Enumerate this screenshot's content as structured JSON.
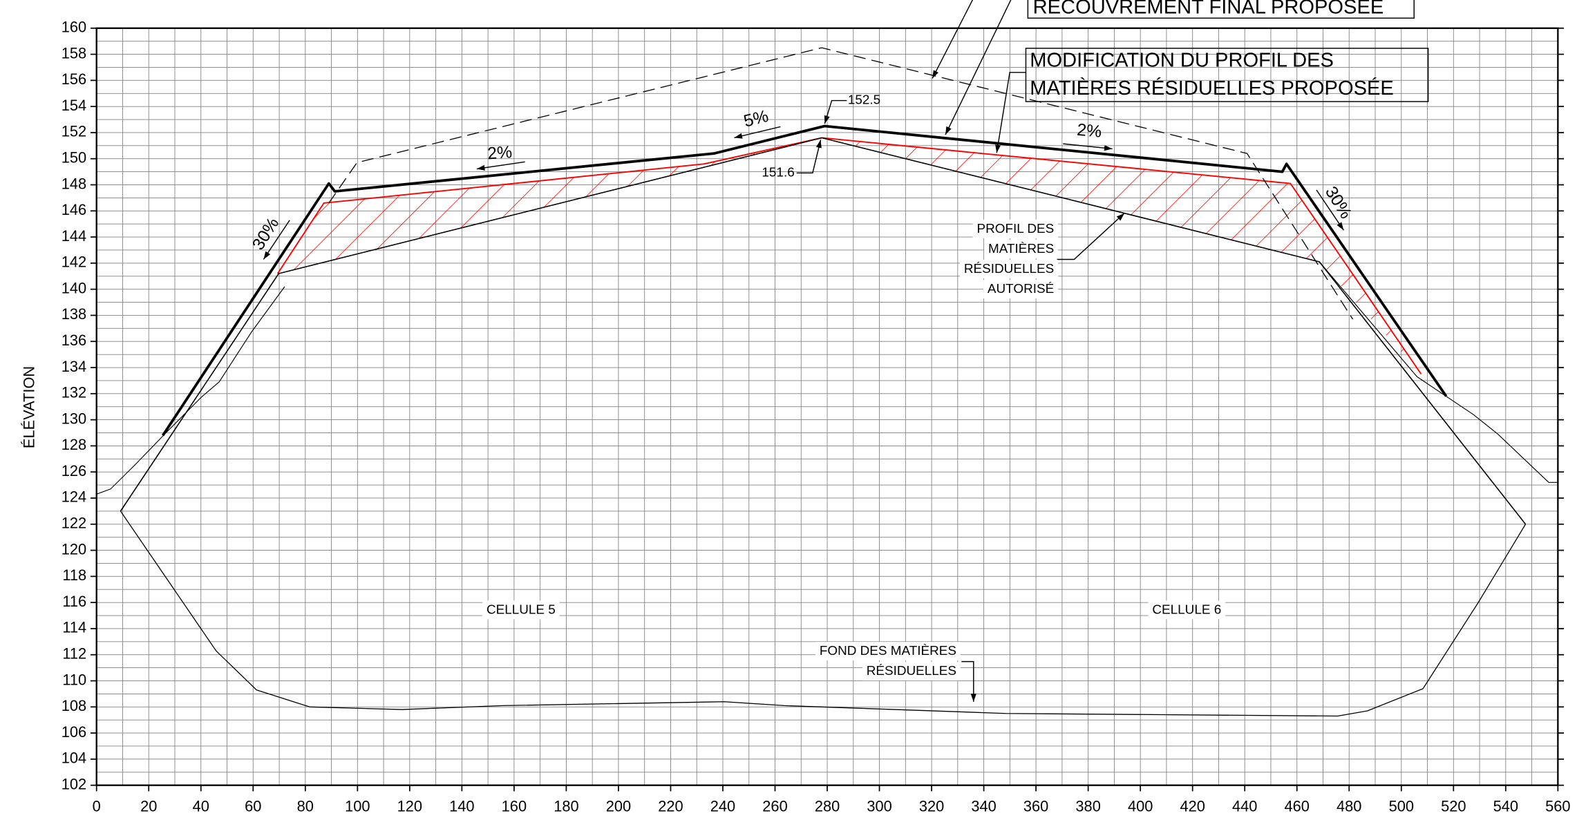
{
  "chart_data": {
    "type": "line",
    "ylabel": "ÉLÉVATION",
    "xlim": [
      0,
      560
    ],
    "ylim": [
      102,
      160
    ],
    "xticks": [
      0,
      20,
      40,
      60,
      80,
      100,
      120,
      140,
      160,
      180,
      200,
      220,
      240,
      260,
      280,
      300,
      320,
      340,
      360,
      380,
      400,
      420,
      440,
      460,
      480,
      500,
      520,
      540,
      560
    ],
    "yticks": [
      102,
      104,
      106,
      108,
      110,
      112,
      114,
      116,
      118,
      120,
      122,
      124,
      126,
      128,
      130,
      132,
      134,
      136,
      138,
      140,
      142,
      144,
      146,
      148,
      150,
      152,
      154,
      156,
      158,
      160
    ],
    "grid": true,
    "series": [
      {
        "color": "#000000",
        "style": "solid",
        "x": [
          25.4,
          89,
          91.3,
          236.6,
          279,
          454.4,
          456,
          517.2
        ],
        "values": [
          128.8,
          148.1,
          147.5,
          150.4,
          152.5,
          149,
          149.6,
          131.8
        ]
      },
      {
        "color": "#ff0000",
        "style": "solid",
        "hatch": true,
        "x": [
          69.4,
          87.1,
          232.8,
          277.9,
          457.5,
          480.2,
          507.6
        ],
        "values": [
          141.2,
          146.6,
          149.6,
          151.6,
          148.1,
          141.5,
          133.5
        ]
      },
      {
        "color": "#000000",
        "style": "solid",
        "x": [
          9.2,
          69.8,
          277.9,
          468.6,
          547.6
        ],
        "values": [
          123,
          141.2,
          151.6,
          142.1,
          122
        ]
      },
      {
        "color": "#000000",
        "style": "dashed",
        "x": [
          89,
          99.8,
          277.9,
          440.9,
          481.4
        ],
        "values": [
          146.6,
          149.7,
          158.5,
          150.4,
          137.7
        ]
      },
      {
        "color": "#000000",
        "style": "solid",
        "x": [
          0,
          5.4,
          15,
          26.6,
          40,
          47,
          59.3,
          72.1
        ],
        "values": [
          124.3,
          124.7,
          126.6,
          129,
          131.7,
          132.9,
          136.7,
          140.2
        ]
      },
      {
        "color": "#000000",
        "style": "solid",
        "x": [
          468.6,
          506,
          527.6,
          537,
          550.7,
          556.5,
          560
        ],
        "values": [
          142.1,
          133.3,
          130.4,
          128.9,
          126.3,
          125.2,
          125.2
        ]
      },
      {
        "color": "#000000",
        "style": "solid",
        "x": [
          9.2,
          45.8,
          61.3,
          81.7,
          117,
          155.7,
          240.5,
          263.6,
          348.4,
          475.6,
          487,
          508.3,
          529.5,
          547.6
        ],
        "values": [
          123,
          112.3,
          109.3,
          108,
          107.8,
          108.1,
          108.4,
          108.1,
          107.5,
          107.3,
          107.7,
          109.4,
          116,
          122
        ]
      }
    ],
    "point_labels": [
      152.5,
      151.6
    ],
    "annotations": [
      "RECOUVREMENT FINAL PROPOSÉE",
      "MODIFICATION DU PROFIL DES",
      "MATIÈRES RÉSIDUELLES PROPOSÉE",
      "5%",
      "2%",
      "2%",
      "30%",
      "30%",
      "PROFIL DES",
      "MATIÈRES",
      "RÉSIDUELLES",
      "AUTORISÉ",
      "CELLULE 5",
      "CELLULE 6",
      "FOND DES MATIÈRES",
      "RÉSIDUELLES"
    ]
  }
}
